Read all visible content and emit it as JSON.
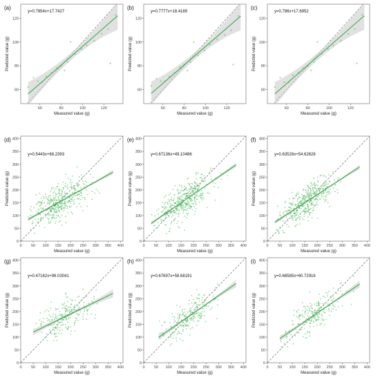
{
  "chart_data": [
    {
      "type": "scatter",
      "panel": "(a)",
      "equation": "y=0.7854x+17.7427",
      "slope": 0.7854,
      "intercept": 17.7427,
      "xlabel": "Measured value (g)",
      "ylabel": "Predicted value (g)",
      "xlim": [
        42,
        138
      ],
      "ylim": [
        48,
        132
      ],
      "xticks": [
        60,
        80,
        100,
        120
      ],
      "yticks": [
        60,
        80,
        100,
        120
      ],
      "fit_range": [
        49,
        133
      ],
      "band_halfwidth": [
        10,
        3,
        12
      ],
      "points": [
        [
          49,
          62
        ],
        [
          54,
          70
        ],
        [
          58,
          67
        ],
        [
          62,
          66
        ],
        [
          66,
          71
        ],
        [
          71,
          74
        ],
        [
          76,
          78
        ],
        [
          80,
          80
        ],
        [
          83,
          76
        ],
        [
          86,
          83
        ],
        [
          89,
          100
        ],
        [
          93,
          90
        ],
        [
          99,
          94
        ],
        [
          104,
          97
        ],
        [
          111,
          101
        ],
        [
          118,
          107
        ],
        [
          124,
          111
        ],
        [
          126,
          82
        ],
        [
          131,
          123
        ]
      ]
    },
    {
      "type": "scatter",
      "panel": "(b)",
      "equation": "y=0.7777x+18.4189",
      "slope": 0.7777,
      "intercept": 18.4189,
      "xlabel": "Measured value (g)",
      "ylabel": "Predicted value (g)",
      "xlim": [
        42,
        138
      ],
      "ylim": [
        48,
        132
      ],
      "xticks": [
        60,
        80,
        100,
        120
      ],
      "yticks": [
        60,
        80,
        100,
        120
      ],
      "fit_range": [
        49,
        133
      ],
      "band_halfwidth": [
        10,
        3,
        12
      ],
      "points": [
        [
          49,
          63
        ],
        [
          54,
          69
        ],
        [
          58,
          67
        ],
        [
          62,
          67
        ],
        [
          66,
          71
        ],
        [
          71,
          74
        ],
        [
          76,
          79
        ],
        [
          80,
          81
        ],
        [
          83,
          76
        ],
        [
          86,
          83
        ],
        [
          89,
          100
        ],
        [
          93,
          89
        ],
        [
          99,
          93
        ],
        [
          104,
          98
        ],
        [
          111,
          102
        ],
        [
          118,
          106
        ],
        [
          124,
          110
        ],
        [
          126,
          81
        ],
        [
          131,
          122
        ]
      ]
    },
    {
      "type": "scatter",
      "panel": "(c)",
      "equation": "y=0.786x+17.6952",
      "slope": 0.786,
      "intercept": 17.6952,
      "xlabel": "Measured value (g)",
      "ylabel": "Predicted value (g)",
      "xlim": [
        42,
        138
      ],
      "ylim": [
        48,
        132
      ],
      "xticks": [
        60,
        80,
        100,
        120
      ],
      "yticks": [
        60,
        80,
        100,
        120
      ],
      "fit_range": [
        49,
        133
      ],
      "band_halfwidth": [
        10,
        3,
        12
      ],
      "points": [
        [
          49,
          62
        ],
        [
          54,
          70
        ],
        [
          58,
          66
        ],
        [
          62,
          66
        ],
        [
          66,
          72
        ],
        [
          71,
          74
        ],
        [
          76,
          78
        ],
        [
          80,
          80
        ],
        [
          83,
          76
        ],
        [
          86,
          83
        ],
        [
          89,
          100
        ],
        [
          93,
          90
        ],
        [
          99,
          94
        ],
        [
          104,
          97
        ],
        [
          111,
          101
        ],
        [
          118,
          107
        ],
        [
          124,
          111
        ],
        [
          126,
          82
        ],
        [
          131,
          123
        ]
      ]
    },
    {
      "type": "scatter",
      "panel": "(d)",
      "equation": "y=0.5443x+68.2393",
      "slope": 0.5443,
      "intercept": 68.2393,
      "xlabel": "Measured value (g)",
      "ylabel": "Predicted value (g)",
      "xlim": [
        0,
        410
      ],
      "ylim": [
        0,
        410
      ],
      "xticks": [
        0,
        50,
        100,
        150,
        200,
        250,
        300,
        350,
        400
      ],
      "yticks": [
        0,
        50,
        100,
        150,
        200,
        250,
        300,
        350,
        400
      ],
      "fit_range": [
        30,
        370
      ],
      "band_halfwidth": [
        7,
        2,
        9
      ],
      "cloud": {
        "n": 420,
        "seed": 11,
        "xmean": 155,
        "xsd": 55,
        "xmin": 30,
        "xmax": 370,
        "resid_sd": 34
      }
    },
    {
      "type": "scatter",
      "panel": "(e)",
      "equation": "y=0.67136x+49.10486",
      "slope": 0.67136,
      "intercept": 49.10486,
      "xlabel": "Measured value (g)",
      "ylabel": "Predicted value (g)",
      "xlim": [
        0,
        410
      ],
      "ylim": [
        0,
        410
      ],
      "xticks": [
        0,
        50,
        100,
        150,
        200,
        250,
        300,
        350,
        400
      ],
      "yticks": [
        0,
        50,
        100,
        150,
        200,
        250,
        300,
        350,
        400
      ],
      "fit_range": [
        30,
        370
      ],
      "band_halfwidth": [
        7,
        2,
        9
      ],
      "cloud": {
        "n": 420,
        "seed": 23,
        "xmean": 155,
        "xsd": 55,
        "xmin": 30,
        "xmax": 370,
        "resid_sd": 32
      }
    },
    {
      "type": "scatter",
      "panel": "(f)",
      "equation": "y=0.63528x+54.62628",
      "slope": 0.63528,
      "intercept": 54.62628,
      "xlabel": "Measured value (g)",
      "ylabel": "Predicted value (g)",
      "xlim": [
        0,
        410
      ],
      "ylim": [
        0,
        410
      ],
      "xticks": [
        0,
        50,
        100,
        150,
        200,
        250,
        300,
        350,
        400
      ],
      "yticks": [
        0,
        50,
        100,
        150,
        200,
        250,
        300,
        350,
        400
      ],
      "fit_range": [
        30,
        370
      ],
      "band_halfwidth": [
        7,
        2,
        9
      ],
      "cloud": {
        "n": 420,
        "seed": 37,
        "xmean": 155,
        "xsd": 55,
        "xmin": 30,
        "xmax": 370,
        "resid_sd": 32
      }
    },
    {
      "type": "scatter",
      "panel": "(g)",
      "equation": "y=0.47162x+96.03041",
      "slope": 0.47162,
      "intercept": 96.03041,
      "xlabel": "Measured value (g)",
      "ylabel": "Predicted value (g)",
      "xlim": [
        0,
        410
      ],
      "ylim": [
        0,
        410
      ],
      "xticks": [
        0,
        50,
        100,
        150,
        200,
        250,
        300,
        350,
        400
      ],
      "yticks": [
        0,
        50,
        100,
        150,
        200,
        250,
        300,
        350,
        400
      ],
      "fit_range": [
        50,
        370
      ],
      "band_halfwidth": [
        12,
        4,
        16
      ],
      "cloud": {
        "n": 230,
        "seed": 41,
        "xmean": 175,
        "xsd": 55,
        "xmin": 50,
        "xmax": 370,
        "resid_sd": 34
      }
    },
    {
      "type": "scatter",
      "panel": "(h)",
      "equation": "y=0.67697x+58.68191",
      "slope": 0.67697,
      "intercept": 58.68191,
      "xlabel": "Measured value (g)",
      "ylabel": "Predicted value (g)",
      "xlim": [
        0,
        410
      ],
      "ylim": [
        0,
        410
      ],
      "xticks": [
        0,
        50,
        100,
        150,
        200,
        250,
        300,
        350,
        400
      ],
      "yticks": [
        0,
        50,
        100,
        150,
        200,
        250,
        300,
        350,
        400
      ],
      "fit_range": [
        60,
        370
      ],
      "band_halfwidth": [
        11,
        3,
        14
      ],
      "cloud": {
        "n": 230,
        "seed": 53,
        "xmean": 175,
        "xsd": 55,
        "xmin": 60,
        "xmax": 370,
        "resid_sd": 30
      }
    },
    {
      "type": "scatter",
      "panel": "(i)",
      "equation": "y=0.66585x+60.72916",
      "slope": 0.66585,
      "intercept": 60.72916,
      "xlabel": "Measured value (g)",
      "ylabel": "Predicted value (g)",
      "xlim": [
        0,
        410
      ],
      "ylim": [
        0,
        410
      ],
      "xticks": [
        0,
        50,
        100,
        150,
        200,
        250,
        300,
        350,
        400
      ],
      "yticks": [
        0,
        50,
        100,
        150,
        200,
        250,
        300,
        350,
        400
      ],
      "fit_range": [
        50,
        370
      ],
      "band_halfwidth": [
        11,
        3,
        14
      ],
      "cloud": {
        "n": 230,
        "seed": 67,
        "xmean": 175,
        "xsd": 55,
        "xmin": 50,
        "xmax": 370,
        "resid_sd": 30
      }
    }
  ],
  "colors": {
    "points": "#47b556",
    "fit_line": "#2ea043",
    "confidence_band": "#c8c8c8",
    "reference_line": "#7a7a7a"
  }
}
